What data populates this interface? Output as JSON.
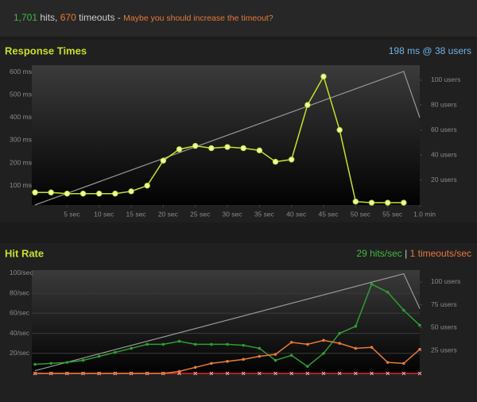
{
  "header": {
    "hits": "1,701",
    "hits_label": "hits,",
    "timeouts": "670",
    "timeouts_label": "timeouts -",
    "message": "Maybe you should increase the timeout?"
  },
  "chart_data": [
    {
      "type": "line",
      "title": "Response Times",
      "summary": {
        "value": "198",
        "unit": "ms @",
        "users": "38",
        "users_label": "users"
      },
      "x": [
        0,
        2.5,
        5,
        7.5,
        10,
        12.5,
        15,
        17.5,
        20,
        22.5,
        25,
        27.5,
        30,
        32.5,
        35,
        37.5,
        40,
        42.5,
        45,
        47.5,
        50,
        52.5,
        55,
        57.5
      ],
      "xlim": [
        -0.5,
        60
      ],
      "xticks": [
        {
          "value": 5,
          "label": "5 sec"
        },
        {
          "value": 10,
          "label": "10 sec"
        },
        {
          "value": 15,
          "label": "15 sec"
        },
        {
          "value": 20,
          "label": "20 sec"
        },
        {
          "value": 25,
          "label": "25 sec"
        },
        {
          "value": 30,
          "label": "30 sec"
        },
        {
          "value": 35,
          "label": "35 sec"
        },
        {
          "value": 40,
          "label": "40 sec"
        },
        {
          "value": 45,
          "label": "45 sec"
        },
        {
          "value": 50,
          "label": "50 sec"
        },
        {
          "value": 55,
          "label": "55 sec"
        },
        {
          "value": 60,
          "label": "1.0 min"
        }
      ],
      "ylim": [
        15,
        630
      ],
      "yticks": [
        {
          "value": 100,
          "label": "100 ms"
        },
        {
          "value": 200,
          "label": "200 ms"
        },
        {
          "value": 300,
          "label": "300 ms"
        },
        {
          "value": 400,
          "label": "400 ms"
        },
        {
          "value": 500,
          "label": "500 ms"
        },
        {
          "value": 600,
          "label": "600 ms"
        }
      ],
      "y2lim": [
        0,
        112
      ],
      "y2ticks": [
        {
          "value": 20,
          "label": "20 users"
        },
        {
          "value": 40,
          "label": "40 users"
        },
        {
          "value": 60,
          "label": "60 users"
        },
        {
          "value": 80,
          "label": "80 users"
        },
        {
          "value": 100,
          "label": "100 users"
        }
      ],
      "grid": false,
      "series": [
        {
          "color": "#999999",
          "axis": "y2",
          "x": [
            0,
            57.5,
            60
          ],
          "values": [
            0,
            107,
            70
          ],
          "marker": "none"
        },
        {
          "color": "#c8df2a",
          "values": [
            70,
            70,
            65,
            65,
            65,
            65,
            75,
            100,
            210,
            260,
            275,
            265,
            270,
            265,
            255,
            205,
            215,
            455,
            580,
            345,
            30,
            25,
            25,
            25
          ],
          "marker": "circle"
        }
      ]
    },
    {
      "type": "line",
      "title": "Hit Rate",
      "summary": {
        "hits": "29",
        "hits_label": "hits/sec",
        "separator": "|",
        "timeouts": "1",
        "timeouts_label": "timeouts/sec"
      },
      "x": [
        0,
        2.5,
        5,
        7.5,
        10,
        12.5,
        15,
        17.5,
        20,
        22.5,
        25,
        27.5,
        30,
        32.5,
        35,
        37.5,
        40,
        42.5,
        45,
        47.5,
        50,
        52.5,
        55,
        57.5,
        60
      ],
      "xlim": [
        -0.5,
        60
      ],
      "xticks": [],
      "ylim": [
        0,
        103
      ],
      "yticks": [
        {
          "value": 20,
          "label": "20/sec"
        },
        {
          "value": 40,
          "label": "40/sec"
        },
        {
          "value": 60,
          "label": "60/sec"
        },
        {
          "value": 80,
          "label": "80/sec"
        },
        {
          "value": 100,
          "label": "100/sec"
        }
      ],
      "y2lim": [
        0,
        113
      ],
      "y2ticks": [
        {
          "value": 25,
          "label": "25 users"
        },
        {
          "value": 50,
          "label": "50 users"
        },
        {
          "value": 75,
          "label": "75 users"
        },
        {
          "value": 100,
          "label": "100 users"
        }
      ],
      "grid": true,
      "series": [
        {
          "color": "#999999",
          "axis": "y2",
          "x": [
            0,
            57.5,
            60
          ],
          "values": [
            3,
            109,
            71
          ],
          "marker": "none"
        },
        {
          "color": "#e02828",
          "values": [
            0,
            0,
            0,
            0,
            0,
            0,
            0,
            0,
            0,
            0,
            0,
            0,
            0,
            0,
            0,
            0,
            0,
            0,
            0,
            0,
            0,
            0,
            0,
            0,
            0
          ],
          "marker": "x"
        },
        {
          "color": "#2f9e2f",
          "values": [
            9,
            10,
            11,
            13,
            17,
            21,
            25,
            29,
            29,
            32,
            29,
            29,
            29,
            28,
            25,
            13,
            18,
            7,
            20,
            40,
            47,
            89,
            81,
            63,
            48
          ],
          "marker": "circle"
        },
        {
          "color": "#e8793a",
          "values": [
            0,
            0,
            0,
            0,
            0,
            0,
            0,
            0,
            0,
            2,
            6,
            10,
            12,
            14,
            17,
            19,
            31,
            29,
            33,
            30,
            25,
            26,
            11,
            10,
            24
          ],
          "marker": "circle"
        }
      ]
    }
  ]
}
